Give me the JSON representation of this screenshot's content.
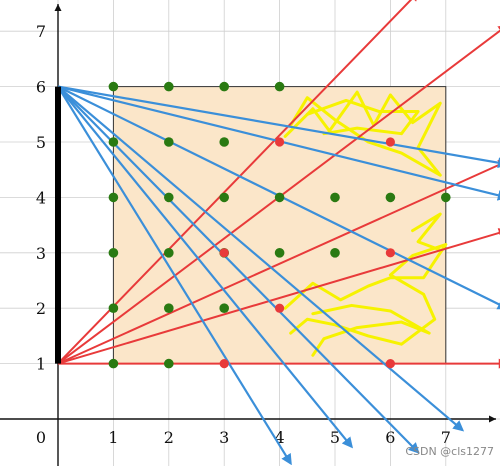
{
  "chart_data": {
    "type": "scatter",
    "xlim": [
      0,
      8
    ],
    "ylim": [
      0,
      7.7
    ],
    "x_ticks": [
      "1",
      "2",
      "3",
      "4",
      "5",
      "6",
      "7"
    ],
    "y_ticks": [
      "1",
      "2",
      "3",
      "4",
      "5",
      "6",
      "7"
    ],
    "origin_label": "0",
    "grid": true,
    "colors": {
      "grid": "#cfcfcf",
      "rect_fill": "#fbe6c9",
      "green": "#2a7a12",
      "red": "#e83a3a",
      "blue": "#3b8fd9",
      "yellow": "#f6f200",
      "black_bar": "#000000"
    },
    "rectangle": {
      "x": [
        1,
        7
      ],
      "y": [
        1,
        6
      ]
    },
    "black_segment": {
      "x": 0,
      "y": [
        1,
        6
      ]
    },
    "green_points": [
      [
        1,
        6
      ],
      [
        2,
        6
      ],
      [
        3,
        6
      ],
      [
        4,
        6
      ],
      [
        1,
        5
      ],
      [
        2,
        5
      ],
      [
        3,
        5
      ],
      [
        1,
        4
      ],
      [
        2,
        4
      ],
      [
        3,
        4
      ],
      [
        4,
        4
      ],
      [
        5,
        4
      ],
      [
        6,
        4
      ],
      [
        7,
        4
      ],
      [
        1,
        3
      ],
      [
        2,
        3
      ],
      [
        3,
        3
      ],
      [
        4,
        3
      ],
      [
        5,
        3
      ],
      [
        1,
        2
      ],
      [
        2,
        2
      ],
      [
        3,
        2
      ],
      [
        1,
        1
      ],
      [
        2,
        1
      ]
    ],
    "red_points": [
      [
        4,
        5
      ],
      [
        6,
        5
      ],
      [
        3,
        3
      ],
      [
        6,
        3
      ],
      [
        4,
        2
      ],
      [
        3,
        1
      ],
      [
        6,
        1
      ]
    ],
    "red_rays": [
      {
        "from": [
          0,
          1
        ],
        "to": [
          6.5,
          7.7
        ]
      },
      {
        "from": [
          0,
          1
        ],
        "to": [
          8.1,
          7.1
        ]
      },
      {
        "from": [
          0,
          1
        ],
        "to": [
          8.1,
          4.65
        ]
      },
      {
        "from": [
          0,
          1
        ],
        "to": [
          8.1,
          3.4
        ]
      },
      {
        "from": [
          0,
          1
        ],
        "to": [
          8.1,
          1
        ]
      }
    ],
    "blue_rays": [
      {
        "from": [
          0,
          6
        ],
        "to": [
          8.1,
          4.6
        ]
      },
      {
        "from": [
          0,
          6
        ],
        "to": [
          8.1,
          4
        ]
      },
      {
        "from": [
          0,
          6
        ],
        "to": [
          8.1,
          2
        ]
      },
      {
        "from": [
          0,
          6
        ],
        "to": [
          7.3,
          -0.2
        ]
      },
      {
        "from": [
          0,
          6
        ],
        "to": [
          4.2,
          -0.8
        ]
      },
      {
        "from": [
          0,
          6
        ],
        "to": [
          6.5,
          -0.6
        ]
      }
    ],
    "blue_extra_rays": [
      {
        "from": [
          0,
          6
        ],
        "to": [
          5.3,
          -0.5
        ]
      }
    ],
    "yellow_scribbles": [
      [
        [
          4.1,
          5.1
        ],
        [
          4.6,
          5.6
        ],
        [
          4.9,
          5.2
        ],
        [
          5.4,
          5.9
        ],
        [
          5.7,
          5.3
        ],
        [
          6.0,
          5.85
        ],
        [
          6.4,
          5.35
        ],
        [
          6.9,
          5.7
        ],
        [
          6.5,
          4.9
        ],
        [
          6.9,
          4.4
        ],
        [
          6.2,
          4.8
        ],
        [
          5.6,
          5.0
        ],
        [
          5.0,
          5.4
        ],
        [
          4.5,
          5.8
        ],
        [
          4.2,
          5.3
        ]
      ],
      [
        [
          4.5,
          5.5
        ],
        [
          5.2,
          5.75
        ],
        [
          5.8,
          5.55
        ],
        [
          6.5,
          5.55
        ],
        [
          6.2,
          5.15
        ],
        [
          5.4,
          5.25
        ],
        [
          4.8,
          5.15
        ]
      ],
      [
        [
          4.1,
          2.0
        ],
        [
          4.6,
          2.45
        ],
        [
          5.1,
          2.15
        ],
        [
          5.6,
          2.4
        ],
        [
          6.0,
          2.55
        ],
        [
          6.6,
          2.55
        ],
        [
          7.0,
          3.15
        ],
        [
          6.4,
          2.95
        ],
        [
          6.0,
          2.6
        ],
        [
          6.6,
          2.25
        ],
        [
          6.8,
          1.8
        ],
        [
          6.2,
          1.35
        ],
        [
          5.6,
          1.5
        ],
        [
          5.0,
          1.7
        ],
        [
          4.5,
          1.8
        ],
        [
          4.2,
          1.55
        ]
      ],
      [
        [
          4.6,
          1.9
        ],
        [
          5.3,
          2.05
        ],
        [
          6.0,
          1.95
        ],
        [
          6.7,
          1.55
        ],
        [
          6.2,
          1.75
        ],
        [
          5.4,
          1.65
        ],
        [
          4.8,
          1.45
        ],
        [
          4.6,
          1.15
        ]
      ],
      [
        [
          6.4,
          3.4
        ],
        [
          6.9,
          3.7
        ],
        [
          6.5,
          3.2
        ],
        [
          6.9,
          3.05
        ]
      ]
    ],
    "watermark": "CSDN @cls1277"
  }
}
